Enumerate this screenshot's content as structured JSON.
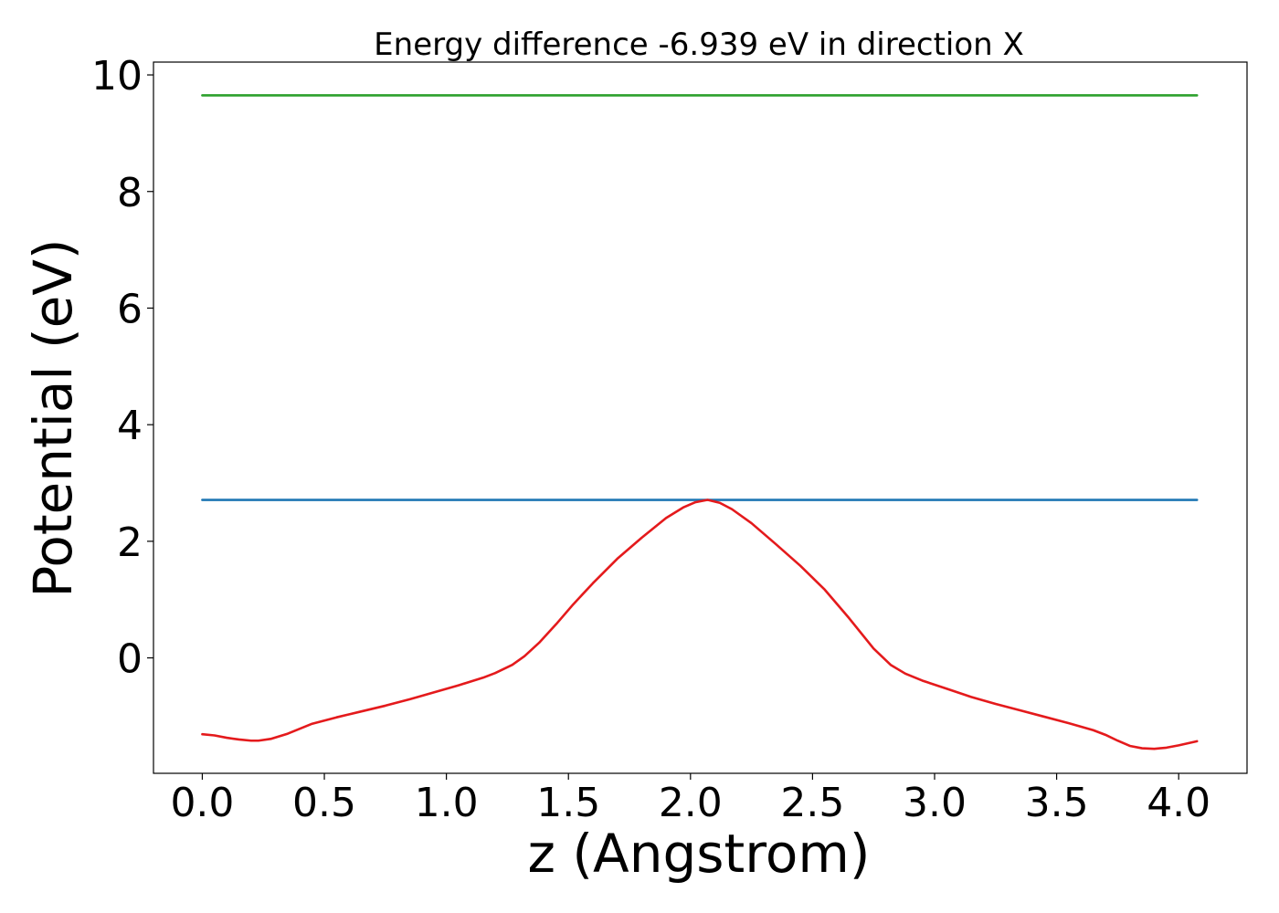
{
  "chart_data": {
    "type": "line",
    "title": "Energy difference -6.939 eV in direction X",
    "xlabel": "z (Angstrom)",
    "ylabel": "Potential (eV)",
    "xlim": [
      -0.2,
      4.28
    ],
    "ylim": [
      -1.98,
      10.22
    ],
    "x_ticks": [
      0.0,
      0.5,
      1.0,
      1.5,
      2.0,
      2.5,
      3.0,
      3.5,
      4.0
    ],
    "x_tick_labels": [
      "0.0",
      "0.5",
      "1.0",
      "1.5",
      "2.0",
      "2.5",
      "3.0",
      "3.5",
      "4.0"
    ],
    "y_ticks": [
      0,
      2,
      4,
      6,
      8,
      10
    ],
    "y_tick_labels": [
      "0",
      "2",
      "4",
      "6",
      "8",
      "10"
    ],
    "grid": false,
    "legend": "none",
    "series": [
      {
        "color": "#2ca02c",
        "x": [
          0.0,
          4.075
        ],
        "y": [
          9.65,
          9.65
        ]
      },
      {
        "color": "#1f77b4",
        "x": [
          0.0,
          4.075
        ],
        "y": [
          2.71,
          2.71
        ]
      },
      {
        "color": "#e41a1c",
        "x": [
          0.0,
          0.05,
          0.1,
          0.15,
          0.2,
          0.23,
          0.28,
          0.35,
          0.45,
          0.55,
          0.65,
          0.75,
          0.85,
          0.95,
          1.05,
          1.15,
          1.2,
          1.27,
          1.32,
          1.38,
          1.45,
          1.52,
          1.6,
          1.7,
          1.8,
          1.9,
          1.97,
          2.02,
          2.07,
          2.12,
          2.17,
          2.25,
          2.35,
          2.45,
          2.55,
          2.65,
          2.75,
          2.82,
          2.88,
          2.95,
          3.05,
          3.15,
          3.25,
          3.35,
          3.45,
          3.55,
          3.65,
          3.7,
          3.75,
          3.8,
          3.85,
          3.9,
          3.95,
          4.0,
          4.075
        ],
        "y": [
          -1.31,
          -1.33,
          -1.37,
          -1.4,
          -1.42,
          -1.42,
          -1.39,
          -1.3,
          -1.13,
          -1.02,
          -0.92,
          -0.82,
          -0.71,
          -0.59,
          -0.47,
          -0.34,
          -0.26,
          -0.12,
          0.03,
          0.26,
          0.58,
          0.92,
          1.28,
          1.7,
          2.06,
          2.4,
          2.58,
          2.67,
          2.71,
          2.66,
          2.55,
          2.31,
          1.95,
          1.58,
          1.17,
          0.68,
          0.16,
          -0.12,
          -0.27,
          -0.39,
          -0.53,
          -0.67,
          -0.79,
          -0.9,
          -1.01,
          -1.12,
          -1.24,
          -1.32,
          -1.42,
          -1.51,
          -1.55,
          -1.56,
          -1.54,
          -1.5,
          -1.43
        ]
      }
    ]
  }
}
